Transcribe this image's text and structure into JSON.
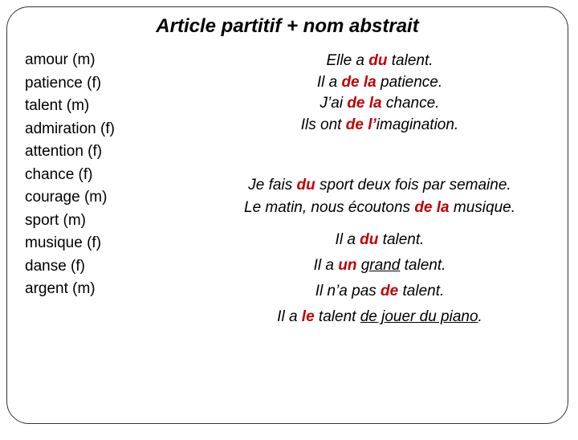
{
  "title": "Article partitif + nom abstrait",
  "nouns": [
    {
      "word": "amour",
      "gender": "(m)"
    },
    {
      "word": "patience",
      "gender": "(f)"
    },
    {
      "word": "talent",
      "gender": "(m)"
    },
    {
      "word": "admiration",
      "gender": "(f)"
    },
    {
      "word": "attention",
      "gender": "(f)"
    },
    {
      "word": "chance",
      "gender": "(f)"
    },
    {
      "word": "courage",
      "gender": "(m)"
    },
    {
      "word": "sport",
      "gender": "(m)"
    },
    {
      "word": "musique",
      "gender": "(f)"
    },
    {
      "word": "danse",
      "gender": "(f)"
    },
    {
      "word": "argent",
      "gender": "(m)"
    }
  ],
  "examples1": [
    {
      "pre": "Elle a ",
      "part": "du",
      "post": " talent."
    },
    {
      "pre": "Il a ",
      "part": "de la",
      "post": " patience."
    },
    {
      "pre": "J’ai ",
      "part": "de la",
      "post": " chance."
    },
    {
      "pre": "Ils ont ",
      "part": "de l’",
      "post": "imagination."
    }
  ],
  "examples2": [
    {
      "pre": "Je fais ",
      "part": "du",
      "post": " sport deux fois par semaine."
    },
    {
      "pre": "Le matin, nous écoutons ",
      "part": "de la",
      "post": " musique."
    }
  ],
  "line_du": {
    "pre": "Il a ",
    "part": "du",
    "post": " talent."
  },
  "line_un": {
    "pre": "Il a ",
    "part": "un",
    "mid": " ",
    "adj": "grand",
    "post": " talent."
  },
  "line_neg": {
    "pre": "Il n’a pas ",
    "part": "de",
    "post": " talent."
  },
  "line_le": {
    "pre": "Il a ",
    "part": "le",
    "post_plain": " talent ",
    "underlined": "de jouer du piano",
    "end": "."
  },
  "colors": {
    "accent": "#c00000"
  }
}
